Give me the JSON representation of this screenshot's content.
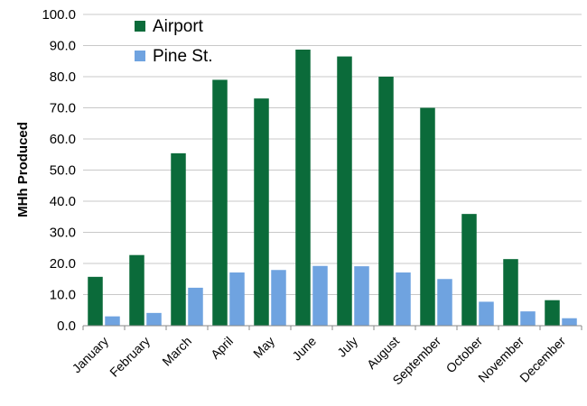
{
  "chart_data": {
    "type": "bar",
    "ylabel": "MHh Produced",
    "xlabel": "",
    "title": "",
    "ylim": [
      0,
      100
    ],
    "ytick_step": 10,
    "ytick_labels": [
      "0.0",
      "10.0",
      "20.0",
      "30.0",
      "40.0",
      "50.0",
      "60.0",
      "70.0",
      "80.0",
      "90.0",
      "100.0"
    ],
    "grid": true,
    "legend_position": "top-left",
    "categories": [
      "January",
      "February",
      "March",
      "April",
      "May",
      "June",
      "July",
      "August",
      "September",
      "October",
      "November",
      "December"
    ],
    "series": [
      {
        "name": "Airport",
        "color": "#0b6b3a",
        "values": [
          15.7,
          22.7,
          55.4,
          79.0,
          73.0,
          88.7,
          86.5,
          80.0,
          70.0,
          35.9,
          21.4,
          8.2
        ]
      },
      {
        "name": "Pine St.",
        "color": "#6fa3e0",
        "values": [
          3.0,
          4.1,
          12.2,
          17.1,
          17.9,
          19.2,
          19.1,
          17.1,
          15.0,
          7.7,
          4.6,
          2.4
        ]
      }
    ]
  }
}
